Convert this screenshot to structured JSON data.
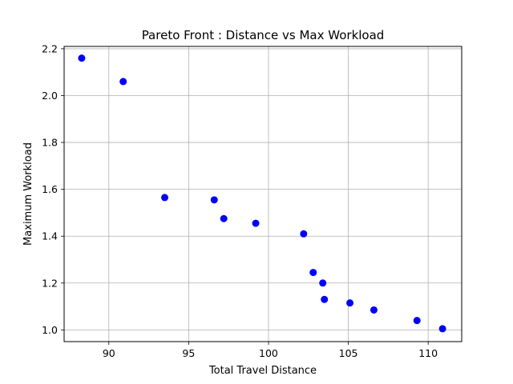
{
  "chart_data": {
    "type": "scatter",
    "title": "Pareto Front : Distance vs Max Workload",
    "xlabel": "Total Travel Distance",
    "ylabel": "Maximum Workload",
    "xlim": [
      87.2,
      112.1
    ],
    "ylim": [
      0.95,
      2.21
    ],
    "xticks": [
      90,
      95,
      100,
      105,
      110
    ],
    "xtick_labels": [
      "90",
      "95",
      "100",
      "105",
      "110"
    ],
    "yticks": [
      1.0,
      1.2,
      1.4,
      1.6,
      1.8,
      2.0,
      2.2
    ],
    "ytick_labels": [
      "1.0",
      "1.2",
      "1.4",
      "1.6",
      "1.8",
      "2.0",
      "2.2"
    ],
    "grid": true,
    "marker_color": "#0000ff",
    "x": [
      88.3,
      90.9,
      93.5,
      96.6,
      97.2,
      99.2,
      102.2,
      102.8,
      103.4,
      103.5,
      105.1,
      106.6,
      109.3,
      110.9
    ],
    "y": [
      2.16,
      2.06,
      1.565,
      1.555,
      1.475,
      1.455,
      1.41,
      1.245,
      1.2,
      1.13,
      1.115,
      1.085,
      1.04,
      1.005
    ]
  }
}
